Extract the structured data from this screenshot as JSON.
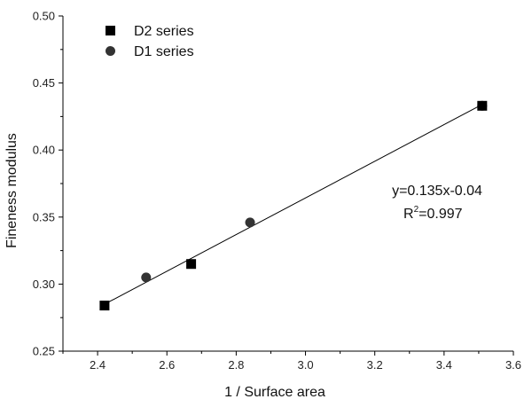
{
  "chart_data": {
    "type": "scatter",
    "xlabel": "1 / Surface area",
    "ylabel": "Fineness modulus",
    "xlim": [
      2.3,
      3.6
    ],
    "ylim": [
      0.25,
      0.5
    ],
    "xticks": [
      2.4,
      2.6,
      2.8,
      3.0,
      3.2,
      3.4,
      3.6
    ],
    "xtick_labels": [
      "2.4",
      "2.6",
      "2.8",
      "3.0",
      "3.2",
      "3.4",
      "3.6"
    ],
    "yticks": [
      0.25,
      0.3,
      0.35,
      0.4,
      0.45,
      0.5
    ],
    "ytick_labels": [
      "0.25",
      "0.30",
      "0.35",
      "0.40",
      "0.45",
      "0.50"
    ],
    "legend_position": "top-left",
    "grid": false,
    "series": [
      {
        "name": "D2 series",
        "marker": "square",
        "color": "#000000",
        "points": [
          {
            "x": 2.42,
            "y": 0.284
          },
          {
            "x": 2.67,
            "y": 0.315
          },
          {
            "x": 3.51,
            "y": 0.433
          }
        ]
      },
      {
        "name": "D1 series",
        "marker": "circle",
        "color": "#333333",
        "points": [
          {
            "x": 2.54,
            "y": 0.305
          },
          {
            "x": 2.84,
            "y": 0.346
          },
          {
            "x": 3.51,
            "y": 0.433
          }
        ]
      }
    ],
    "fit_line": {
      "x": [
        2.42,
        3.51
      ],
      "y": [
        0.285,
        0.434
      ],
      "color": "#000000"
    },
    "annotations": {
      "equation": "y=0.135x-0.04",
      "r_squared_prefix": "R",
      "r_squared_sup": "2",
      "r_squared_value": "=0.997"
    }
  }
}
